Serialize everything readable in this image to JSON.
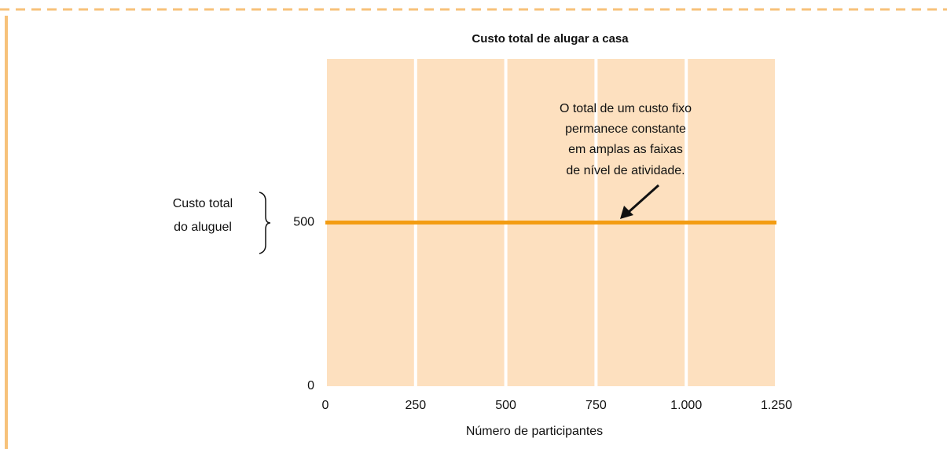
{
  "chart_data": {
    "type": "line",
    "title": "Custo total de alugar a casa",
    "xlabel": "Número de participantes",
    "ylabel": [
      "Custo total",
      "do aluguel"
    ],
    "annotation": [
      "O total de um custo fixo",
      "permanece constante",
      "em amplas as faixas",
      "de nível de atividade."
    ],
    "x": [
      0,
      1250
    ],
    "series": [
      {
        "name": "Custo total",
        "color": "#f39c12",
        "values": [
          500,
          500
        ]
      }
    ],
    "xlim": [
      0,
      1250
    ],
    "xticks": [
      0,
      250,
      500,
      750,
      {
        "value": 1000,
        "label": "1.000"
      },
      {
        "value": 1250,
        "label": "1.250"
      }
    ],
    "ylim": [
      0,
      1000
    ],
    "yticks": [
      0,
      500
    ],
    "grid": true,
    "background": "#fde0bf"
  }
}
